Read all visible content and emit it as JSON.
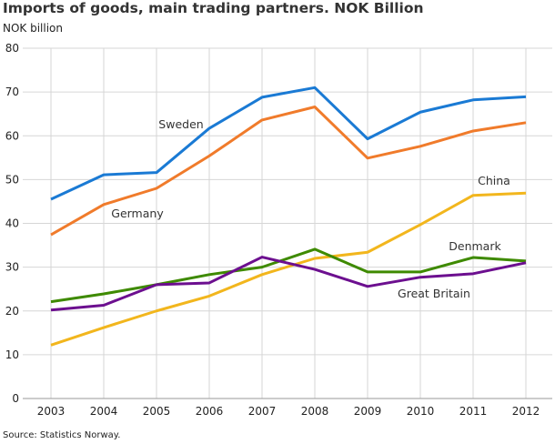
{
  "chart_data": {
    "type": "line",
    "title": "Imports of goods, main trading partners. NOK Billion",
    "ylabel": "NOK billion",
    "xlabel": "",
    "source": "Source: Statistics Norway.",
    "categories": [
      "2003",
      "2004",
      "2005",
      "2006",
      "2007",
      "2008",
      "2009",
      "2010",
      "2011",
      "2012"
    ],
    "ylim": [
      0,
      80
    ],
    "yticks": [
      0,
      10,
      20,
      30,
      40,
      50,
      60,
      70,
      80
    ],
    "grid": true,
    "legend": "inline labels",
    "series": [
      {
        "name": "Sweden",
        "color": "#1a7ad4",
        "values": [
          45.5,
          51.1,
          51.6,
          61.7,
          68.8,
          71.0,
          59.3,
          65.4,
          68.2,
          68.9
        ]
      },
      {
        "name": "Germany",
        "color": "#f07b2b",
        "values": [
          37.4,
          44.3,
          48.0,
          55.4,
          63.6,
          66.6,
          54.9,
          57.6,
          61.1,
          63.0
        ]
      },
      {
        "name": "China",
        "color": "#f2b61d",
        "values": [
          12.2,
          16.2,
          20.0,
          23.4,
          28.3,
          32.0,
          33.4,
          39.7,
          46.4,
          46.9
        ]
      },
      {
        "name": "Denmark",
        "color": "#3e8a00",
        "values": [
          22.1,
          23.9,
          26.0,
          28.3,
          30.0,
          34.1,
          28.9,
          28.9,
          32.2,
          31.4
        ]
      },
      {
        "name": "Great Britain",
        "color": "#6c0f8f",
        "values": [
          20.2,
          21.3,
          26.0,
          26.4,
          32.3,
          29.5,
          25.6,
          27.7,
          28.5,
          31.0
        ]
      }
    ]
  }
}
